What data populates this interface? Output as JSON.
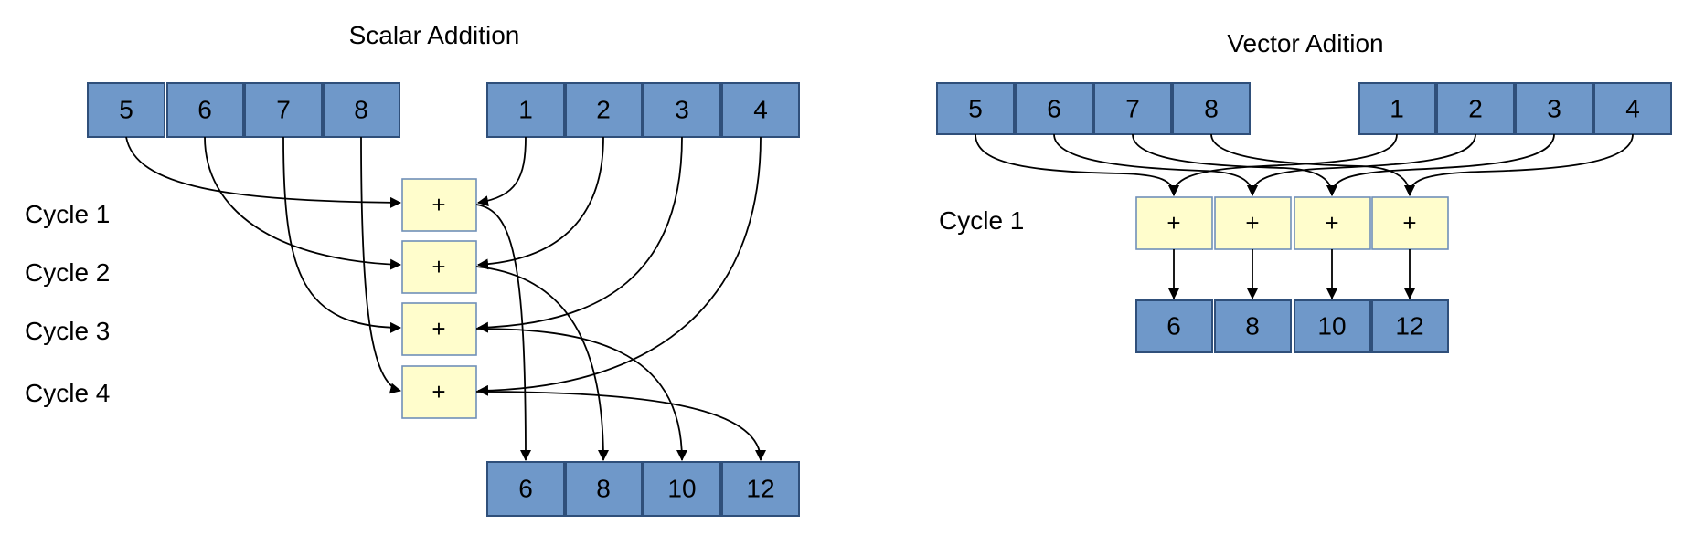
{
  "scalar": {
    "title": "Scalar Addition",
    "operand_a": [
      "5",
      "6",
      "7",
      "8"
    ],
    "operand_b": [
      "1",
      "2",
      "3",
      "4"
    ],
    "cycles": [
      "Cycle 1",
      "Cycle 2",
      "Cycle 3",
      "Cycle 4"
    ],
    "adder_symbol": "+",
    "results": [
      "6",
      "8",
      "10",
      "12"
    ]
  },
  "vector": {
    "title": "Vector Adition",
    "operand_a": [
      "5",
      "6",
      "7",
      "8"
    ],
    "operand_b": [
      "1",
      "2",
      "3",
      "4"
    ],
    "cycle_label": "Cycle 1",
    "adder_symbol": "+",
    "results": [
      "6",
      "8",
      "10",
      "12"
    ]
  },
  "colors": {
    "operand_fill": "#6f98c9",
    "operand_border": "#2f4f7a",
    "adder_fill": "#fffdcc",
    "arrow": "#000000"
  }
}
